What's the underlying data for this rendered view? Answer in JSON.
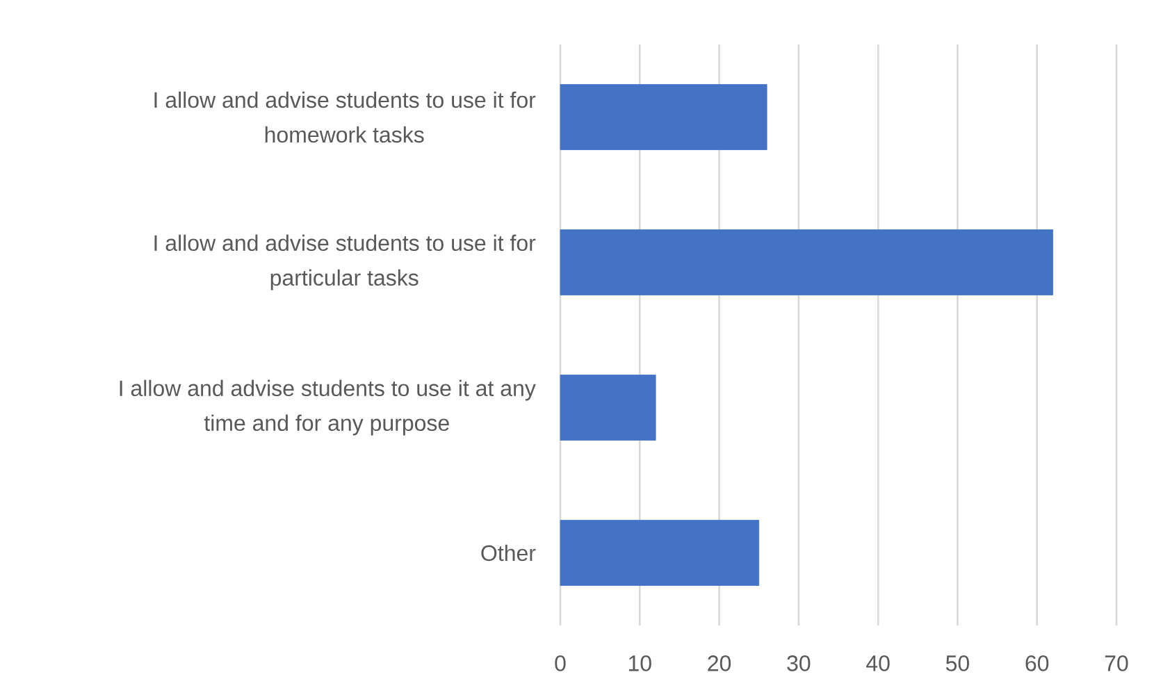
{
  "chart_data": {
    "type": "bar",
    "orientation": "horizontal",
    "categories": [
      "I allow and advise students to use it for homework tasks",
      "I allow and advise students to use it for particular tasks",
      "I allow and advise students to use it at any time and for any purpose",
      "Other"
    ],
    "values": [
      26,
      62,
      12,
      25
    ],
    "color": "#4472c4",
    "xlim": [
      0,
      70
    ],
    "xticks": [
      0,
      10,
      20,
      30,
      40,
      50,
      60,
      70
    ],
    "grid": "x"
  }
}
